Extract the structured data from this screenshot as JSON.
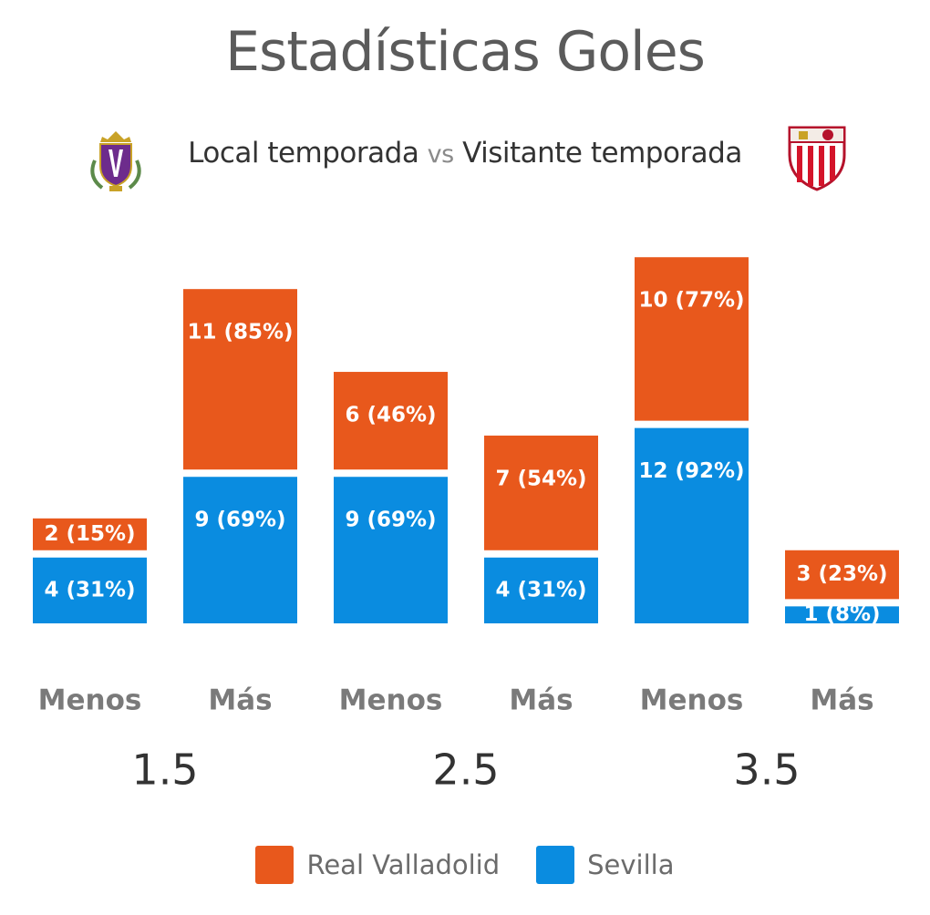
{
  "header": {
    "title": "Estadísticas Goles",
    "subtitle_home": "Local temporada",
    "subtitle_vs": "vs",
    "subtitle_away": "Visitante temporada"
  },
  "colors": {
    "home": "#e8581c",
    "away": "#0a8ce0",
    "axis_text": "#7a7a7a",
    "group_text": "#333333"
  },
  "legend": [
    {
      "label": "Real Valladolid",
      "color": "#e8581c"
    },
    {
      "label": "Sevilla",
      "color": "#0a8ce0"
    }
  ],
  "chart_data": {
    "type": "bar",
    "title": "Estadísticas Goles",
    "categories": [
      "Menos",
      "Más",
      "Menos",
      "Más",
      "Menos",
      "Más"
    ],
    "groups": [
      "1.5",
      "2.5",
      "3.5"
    ],
    "series": [
      {
        "name": "Real Valladolid",
        "values": [
          2,
          11,
          6,
          7,
          10,
          3
        ],
        "percents": [
          15,
          85,
          46,
          54,
          77,
          23
        ],
        "labels": [
          "2 (15%)",
          "11 (85%)",
          "6 (46%)",
          "7 (54%)",
          "10 (77%)",
          "3 (23%)"
        ]
      },
      {
        "name": "Sevilla",
        "values": [
          4,
          9,
          9,
          4,
          12,
          1
        ],
        "percents": [
          31,
          69,
          69,
          31,
          92,
          8
        ],
        "labels": [
          "4 (31%)",
          "9 (69%)",
          "9 (69%)",
          "4 (31%)",
          "12 (92%)",
          "1 (8%)"
        ]
      }
    ]
  }
}
